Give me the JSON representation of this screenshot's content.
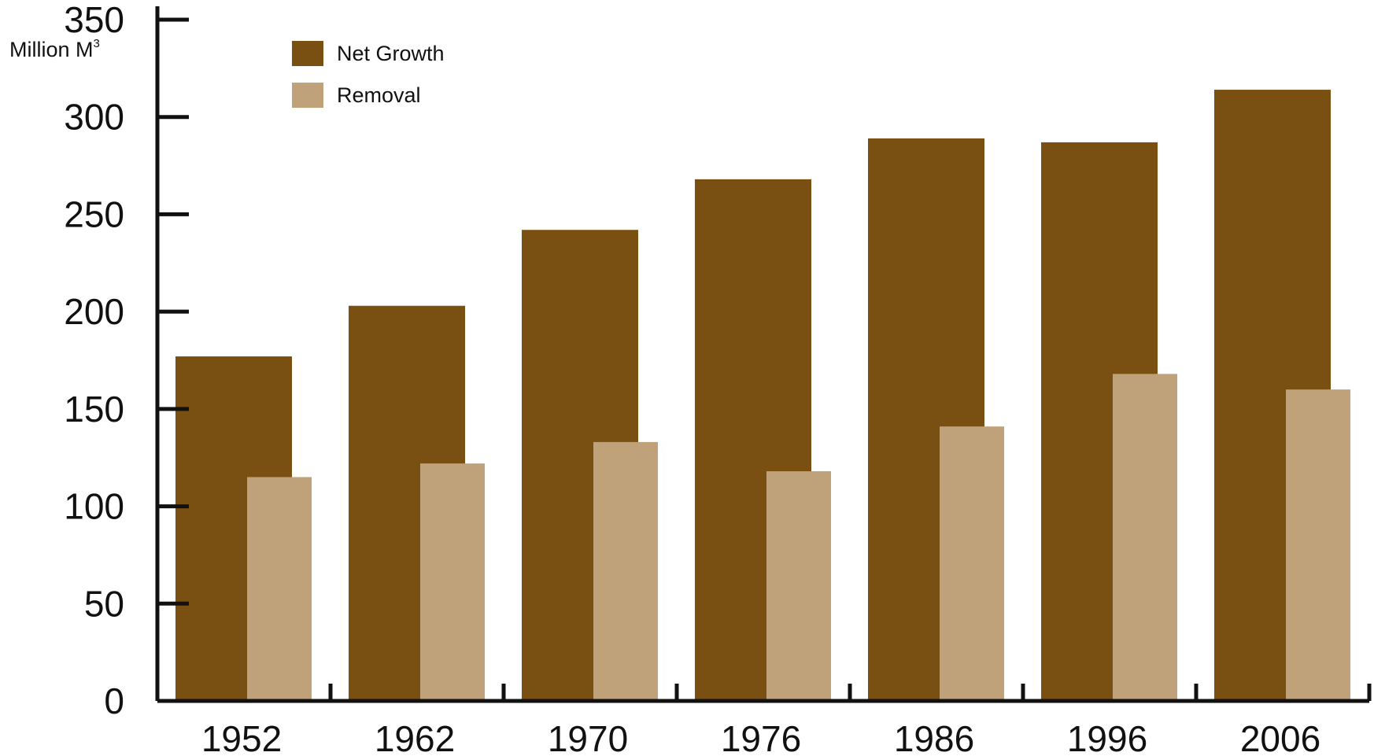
{
  "chart_data": {
    "type": "bar",
    "title": "",
    "xlabel": "",
    "ylabel": "Million M",
    "ylabel_superscript": "3",
    "categories": [
      "1952",
      "1962",
      "1970",
      "1976",
      "1986",
      "1996",
      "2006"
    ],
    "series": [
      {
        "name": "Net Growth",
        "color": "#7a5012",
        "values": [
          177,
          203,
          242,
          268,
          289,
          287,
          314
        ]
      },
      {
        "name": "Removal",
        "color": "#bfa27a",
        "values": [
          115,
          122,
          133,
          118,
          141,
          168,
          160
        ]
      }
    ],
    "ylim": [
      0,
      350
    ],
    "yticks": [
      0,
      50,
      100,
      150,
      200,
      250,
      300,
      350
    ],
    "grid": false,
    "legend_position": "top-left"
  }
}
